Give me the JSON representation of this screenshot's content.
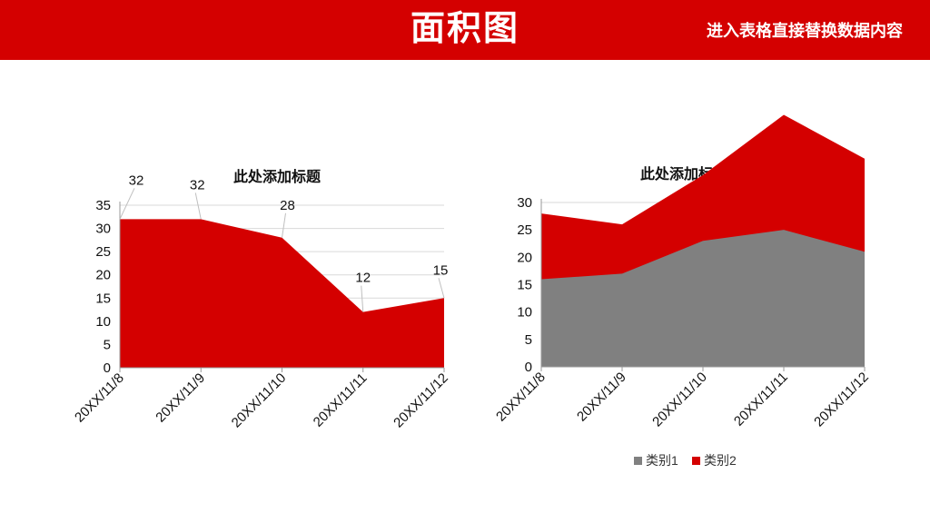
{
  "header": {
    "title": "面积图",
    "subtitle": "进入表格直接替换数据内容"
  },
  "colors": {
    "header_bg": "#d40000",
    "series_red": "#d40000",
    "series_gray": "#808080",
    "grid": "#d9d9d9",
    "axis": "#999999"
  },
  "chart_data": [
    {
      "type": "area",
      "title": "此处添加标题",
      "categories": [
        "20XX/11/8",
        "20XX/11/9",
        "20XX/11/10",
        "20XX/11/11",
        "20XX/11/12"
      ],
      "series": [
        {
          "values": [
            32,
            32,
            28,
            12,
            15
          ],
          "color": "#d40000"
        }
      ],
      "data_labels": [
        "32",
        "32",
        "28",
        "12",
        "15"
      ],
      "ylim": [
        0,
        35
      ],
      "yticks": [
        "0",
        "5",
        "10",
        "15",
        "20",
        "25",
        "30",
        "35"
      ],
      "grid": true,
      "legend": "none"
    },
    {
      "type": "area",
      "title": "此处添加标题",
      "categories": [
        "20XX/11/8",
        "20XX/11/9",
        "20XX/11/10",
        "20XX/11/11",
        "20XX/11/12"
      ],
      "series": [
        {
          "name": "类别1",
          "values": [
            16,
            17,
            23,
            25,
            21
          ],
          "color": "#808080"
        },
        {
          "name": "类别2",
          "values": [
            12,
            9,
            12,
            21,
            17
          ],
          "color": "#d40000"
        }
      ],
      "ylim": [
        0,
        30
      ],
      "yticks": [
        "0",
        "5",
        "10",
        "15",
        "20",
        "25",
        "30"
      ],
      "grid": true,
      "legend": "bottom"
    }
  ]
}
